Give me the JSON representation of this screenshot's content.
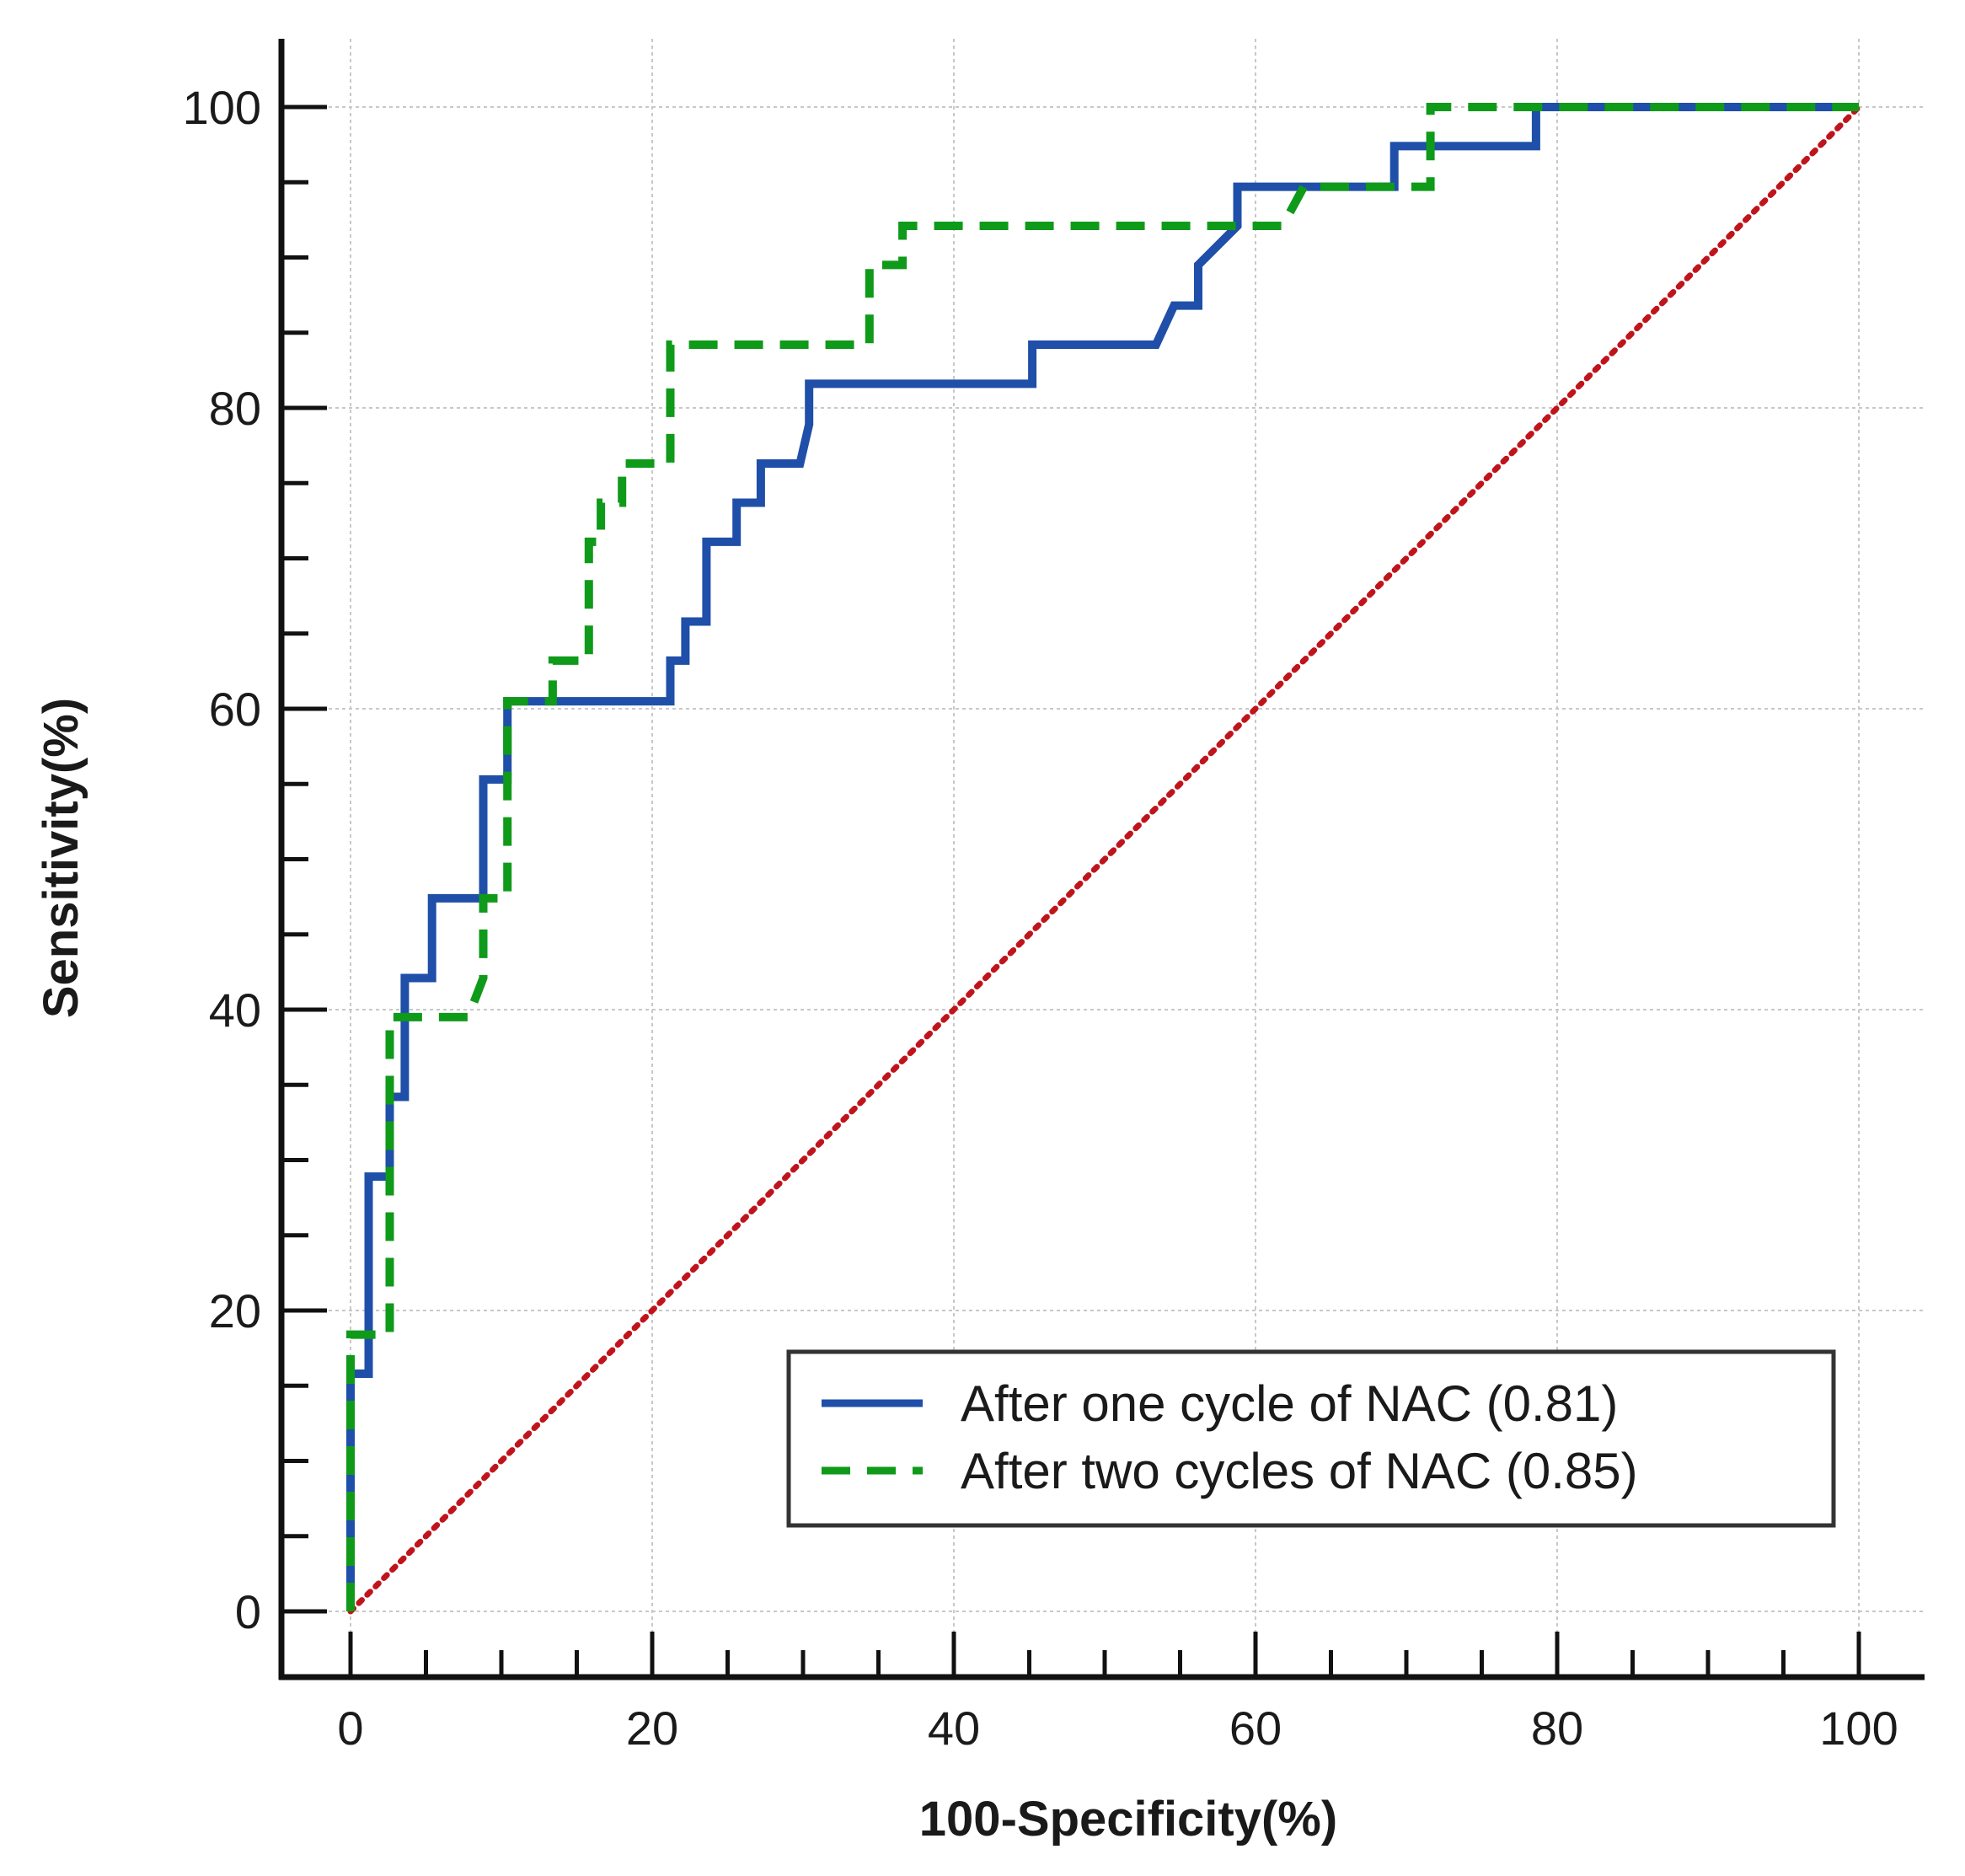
{
  "chart_data": {
    "type": "line",
    "title": "",
    "xlabel": "100-Specificity(%)",
    "ylabel": "Sensitivity(%)",
    "xlim": [
      0,
      100
    ],
    "ylim": [
      0,
      100
    ],
    "x_ticks": [
      0,
      20,
      40,
      60,
      80,
      100
    ],
    "y_ticks": [
      0,
      20,
      40,
      60,
      80,
      100
    ],
    "x_minor_step": 5,
    "y_minor_step": 5,
    "grid": true,
    "legend_position": "lower-right",
    "colors": {
      "one_cycle": "#1f4fa8",
      "two_cycles": "#0f9a1a",
      "reference": "#c0141c",
      "axis": "#111111",
      "grid": "#c8c8c8"
    },
    "series": [
      {
        "name": "After one cycle of NAC (0.81)",
        "style": "solid",
        "x": [
          0,
          0,
          1.2,
          1.2,
          2.6,
          2.6,
          3.6,
          3.6,
          5.4,
          5.4,
          8.8,
          8.8,
          10.4,
          10.4,
          21.2,
          21.2,
          22.2,
          22.2,
          23.6,
          23.6,
          25.6,
          25.6,
          27.2,
          27.2,
          29.8,
          30.4,
          30.4,
          45.2,
          45.2,
          53.4,
          54.6,
          56.2,
          56.2,
          58.8,
          58.8,
          69.2,
          69.2,
          78.6,
          78.6,
          100
        ],
        "y": [
          0,
          15.8,
          15.8,
          28.9,
          28.9,
          34.2,
          34.2,
          42.1,
          42.1,
          47.4,
          47.4,
          55.3,
          55.3,
          60.5,
          60.5,
          63.2,
          63.2,
          65.8,
          65.8,
          71.1,
          71.1,
          73.7,
          73.7,
          76.3,
          76.3,
          78.9,
          81.6,
          81.6,
          84.2,
          84.2,
          86.8,
          86.8,
          89.5,
          92.1,
          94.7,
          94.7,
          97.4,
          97.4,
          100,
          100
        ]
      },
      {
        "name": "After two cycles of NAC (0.85)",
        "style": "dashed",
        "x": [
          0,
          0,
          2.6,
          2.6,
          7.8,
          8.8,
          8.8,
          10.4,
          10.4,
          13.4,
          13.4,
          15.8,
          15.8,
          16.6,
          16.6,
          18.0,
          18.0,
          21.2,
          21.2,
          34.4,
          34.4,
          36.6,
          36.6,
          61.8,
          63.2,
          63.2,
          71.6,
          71.6,
          100
        ],
        "y": [
          0,
          18.4,
          18.4,
          39.5,
          39.5,
          42.1,
          47.4,
          47.4,
          60.5,
          60.5,
          63.2,
          63.2,
          71.1,
          71.1,
          73.7,
          73.7,
          76.3,
          76.3,
          84.2,
          84.2,
          89.5,
          89.5,
          92.1,
          92.1,
          94.7,
          94.7,
          94.7,
          100,
          100
        ]
      },
      {
        "name": "Reference line",
        "style": "dotted",
        "x": [
          0,
          100
        ],
        "y": [
          0,
          100
        ]
      }
    ],
    "legend": [
      "After one cycle of NAC (0.81)",
      "After two cycles of NAC (0.85)"
    ]
  }
}
